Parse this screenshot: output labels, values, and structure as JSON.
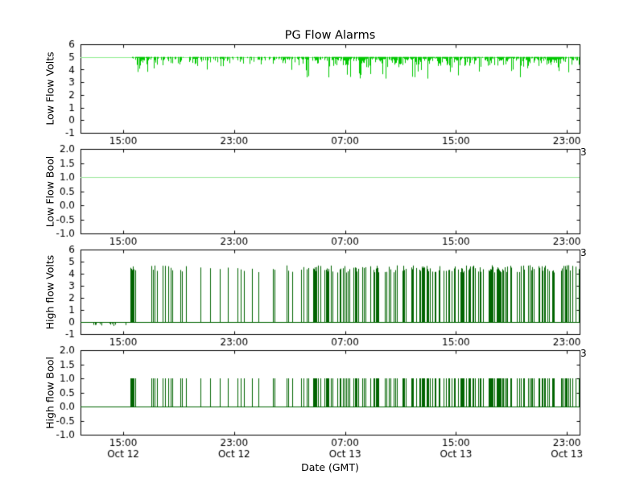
{
  "figure": {
    "title": "PG Flow Alarms",
    "xlabel": "Date (GMT)",
    "background": "#ffffff",
    "axis_color": "#000000",
    "text_color": "#000000"
  },
  "right_edge_label": "3",
  "xaxis": {
    "label": "Date (GMT)",
    "range_hours": [
      11.92,
      47.92
    ],
    "tick_hours": [
      15,
      23,
      31,
      39,
      47
    ],
    "tick_labels": [
      "15:00",
      "23:00",
      "07:00",
      "15:00",
      "23:00"
    ],
    "date_labels": [
      "Oct 12",
      "Oct 12",
      "Oct 13",
      "Oct 13",
      "Oct 13"
    ]
  },
  "chart_data": [
    {
      "type": "line",
      "ylabel": "Low Flow Volts",
      "ylim": [
        -1,
        6
      ],
      "ytick_values": [
        6,
        5,
        4,
        3,
        2,
        1,
        0,
        -1
      ],
      "ytick_labels": [
        "6",
        "5",
        "4",
        "3",
        "2",
        "1",
        "0",
        "-1"
      ],
      "series": [
        {
          "name": "Low Flow Volts",
          "color": "#00c800",
          "flat_color": "#90ee90",
          "baseline": 5.0,
          "noise_start_hour": 15.45,
          "noise_max_dip": 1.8,
          "description": "Constant 5 V line; dense downward noise spikes (to ~3.2-4.8 V) from ~15:30 Oct 12 through end",
          "density_envelope": [
            [
              11.92,
              15.45,
              0
            ],
            [
              15.45,
              18,
              0.75
            ],
            [
              18,
              23.5,
              0.6
            ],
            [
              23.5,
              26,
              0.55
            ],
            [
              26,
              31,
              0.8
            ],
            [
              31,
              40,
              0.9
            ],
            [
              40,
              47.92,
              0.85
            ]
          ]
        }
      ]
    },
    {
      "type": "line",
      "ylabel": "Low Flow Bool",
      "ylim": [
        -1,
        2
      ],
      "ytick_values": [
        2,
        1.5,
        1,
        0.5,
        0,
        -0.5,
        -1
      ],
      "ytick_labels": [
        "2.0",
        "1.5",
        "1.0",
        "0.5",
        "0.0",
        "-0.5",
        "-1.0"
      ],
      "series": [
        {
          "name": "Low Flow Bool",
          "color": "#9be89b",
          "constant": 1.0,
          "description": "Constant 1.0 for entire time range"
        }
      ]
    },
    {
      "type": "line",
      "ylabel": "High flow Volts",
      "ylim": [
        -1,
        6
      ],
      "ytick_values": [
        6,
        5,
        4,
        3,
        2,
        1,
        0,
        -1
      ],
      "ytick_labels": [
        "6",
        "5",
        "4",
        "3",
        "2",
        "1",
        "0",
        "-1"
      ],
      "series": [
        {
          "name": "High flow Volts",
          "color": "#006400",
          "baseline": 0.0,
          "spike_min": 4.1,
          "spike_max": 4.7,
          "neg_dip_window": [
            12.3,
            15.2
          ],
          "neg_dip_depth": 0.3,
          "burst_start_hour": 15.5,
          "description": "Baseline 0 V; bursts of spikes to ~4.1-4.7 V starting ~15:30 Oct 12, increasingly dense through Oct 13; small negative dips before 15:00 Oct 12",
          "density_envelope": [
            [
              11.92,
              15.5,
              0
            ],
            [
              15.5,
              16.8,
              0.5
            ],
            [
              16.8,
              19.5,
              0.33
            ],
            [
              19.5,
              21.5,
              0.28
            ],
            [
              21.5,
              23.2,
              0.14
            ],
            [
              23.2,
              25.5,
              0.3
            ],
            [
              25.5,
              28,
              0.45
            ],
            [
              28,
              31,
              0.6
            ],
            [
              31,
              36,
              0.75
            ],
            [
              36,
              44,
              0.8
            ],
            [
              44,
              47.92,
              0.72
            ]
          ]
        }
      ]
    },
    {
      "type": "line",
      "ylabel": "High flow Bool",
      "ylim": [
        -1,
        2
      ],
      "ytick_values": [
        2,
        1.5,
        1,
        0.5,
        0,
        -0.5,
        -1
      ],
      "ytick_labels": [
        "2.0",
        "1.5",
        "1.0",
        "0.5",
        "0.0",
        "-0.5",
        "-1.0"
      ],
      "series": [
        {
          "name": "High flow Bool",
          "color": "#006400",
          "baseline": 0.0,
          "spike_value": 1.0,
          "description": "Baseline 0; spikes to 1.0 coinciding with High flow Volts bursts"
        }
      ]
    }
  ]
}
